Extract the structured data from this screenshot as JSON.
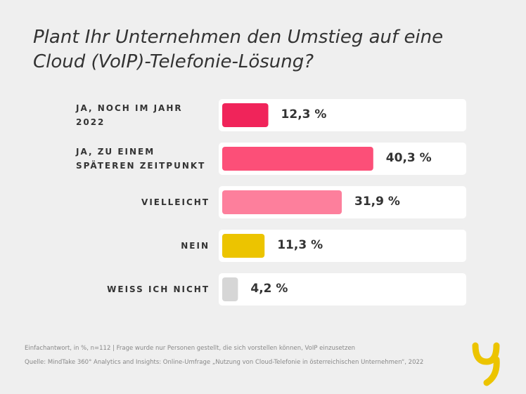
{
  "chart_data": {
    "type": "bar",
    "orientation": "horizontal",
    "title": "Plant Ihr Unternehmen den Umstieg auf eine Cloud (VoIP)-Telefonie-Lösung?",
    "categories": [
      "JA, NOCH IM JAHR 2022",
      "JA, ZU EINEM SPÄTEREN ZEITPUNKT",
      "VIELLEICHT",
      "NEIN",
      "WEISS ICH NICHT"
    ],
    "values": [
      12.3,
      40.3,
      31.9,
      11.3,
      4.2
    ],
    "value_labels": [
      "12,3 %",
      "40,3 %",
      "31,9 %",
      "11,3 %",
      "4,2 %"
    ],
    "colors": [
      "#f0245a",
      "#fc4f78",
      "#fd7f9c",
      "#ecc400",
      "#d6d6d6"
    ],
    "footnotes": [
      "Einfachantwort, in %, n=112 | Frage wurde nur Personen gestellt, die sich vorstellen können, VoIP einzusetzen",
      "Quelle: MindTake 360° Analytics and Insights: Online-Umfrage „Nutzung von Cloud-Telefonie in österreichischen Unternehmen“, 2022"
    ]
  }
}
